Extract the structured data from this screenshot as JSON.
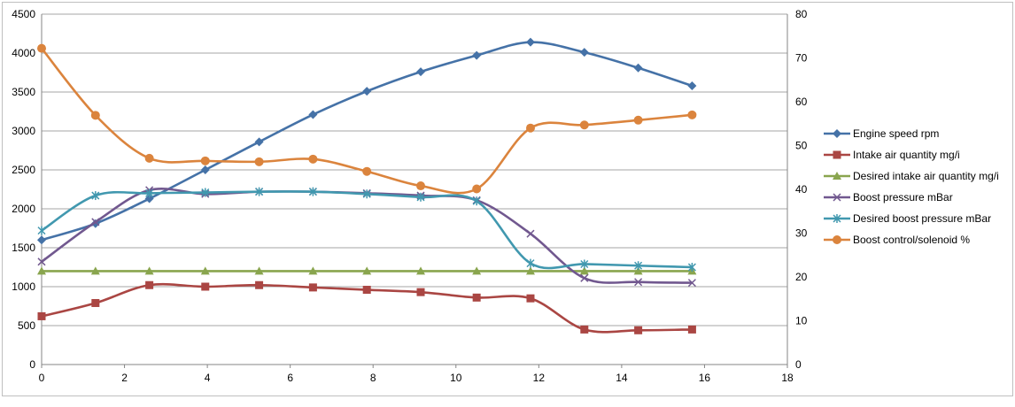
{
  "chart_data": {
    "type": "line",
    "smooth": true,
    "x_axis": {
      "min": 0,
      "max": 18,
      "step": 2,
      "ticks": [
        "0",
        "2",
        "4",
        "6",
        "8",
        "10",
        "12",
        "14",
        "16",
        "18"
      ]
    },
    "y_left": {
      "min": 0,
      "max": 4500,
      "step": 500,
      "ticks": [
        "0",
        "500",
        "1000",
        "1500",
        "2000",
        "2500",
        "3000",
        "3500",
        "4000",
        "4500"
      ]
    },
    "y_right": {
      "min": 0,
      "max": 80,
      "step": 10,
      "ticks": [
        "0",
        "10",
        "20",
        "30",
        "40",
        "50",
        "60",
        "70",
        "80"
      ]
    },
    "grid": "horizontal",
    "legend_position": "right",
    "series": [
      {
        "name": "Engine speed rpm",
        "axis": "left",
        "color": "#4572a7",
        "marker": "diamond",
        "x": [
          0,
          1.3,
          2.6,
          3.95,
          5.25,
          6.55,
          7.85,
          9.15,
          10.5,
          11.8,
          13.1,
          14.4,
          15.7
        ],
        "y": [
          1600,
          1810,
          2130,
          2500,
          2860,
          3210,
          3510,
          3760,
          3970,
          4140,
          4010,
          3810,
          3580
        ]
      },
      {
        "name": "Intake air quantity mg/i",
        "axis": "left",
        "color": "#aa4643",
        "marker": "square",
        "x": [
          0,
          1.3,
          2.6,
          3.95,
          5.25,
          6.55,
          7.85,
          9.15,
          10.5,
          11.8,
          13.1,
          14.4,
          15.7
        ],
        "y": [
          620,
          790,
          1020,
          1000,
          1020,
          990,
          960,
          930,
          860,
          850,
          450,
          440,
          450
        ]
      },
      {
        "name": "Desired intake air quantity mg/i",
        "axis": "left",
        "color": "#89a54e",
        "marker": "triangle",
        "x": [
          0,
          1.3,
          2.6,
          3.95,
          5.25,
          6.55,
          7.85,
          9.15,
          10.5,
          11.8,
          13.1,
          14.4,
          15.7
        ],
        "y": [
          1200,
          1200,
          1200,
          1200,
          1200,
          1200,
          1200,
          1200,
          1200,
          1200,
          1200,
          1200,
          1200
        ]
      },
      {
        "name": "Boost pressure mBar",
        "axis": "left",
        "color": "#71588f",
        "marker": "x",
        "x": [
          0,
          1.3,
          2.6,
          3.95,
          5.25,
          6.55,
          7.85,
          9.15,
          10.5,
          11.8,
          13.1,
          14.4,
          15.7
        ],
        "y": [
          1320,
          1830,
          2240,
          2190,
          2220,
          2220,
          2200,
          2170,
          2110,
          1680,
          1110,
          1060,
          1050
        ]
      },
      {
        "name": "Desired boost pressure mBar",
        "axis": "left",
        "color": "#4198af",
        "marker": "star",
        "x": [
          0,
          1.3,
          2.6,
          3.95,
          5.25,
          6.55,
          7.85,
          9.15,
          10.5,
          11.8,
          13.1,
          14.4,
          15.7
        ],
        "y": [
          1720,
          2170,
          2200,
          2210,
          2220,
          2220,
          2190,
          2150,
          2100,
          1300,
          1290,
          1270,
          1250
        ]
      },
      {
        "name": "Boost control/solenoid %",
        "axis": "right",
        "color": "#db843d",
        "marker": "circle",
        "x": [
          0,
          1.3,
          2.6,
          3.95,
          5.25,
          6.55,
          7.85,
          9.15,
          10.5,
          11.8,
          13.1,
          14.4,
          15.7
        ],
        "y": [
          72.2,
          56.9,
          47.1,
          46.5,
          46.3,
          46.9,
          44.1,
          40.8,
          40.1,
          54.0,
          54.7,
          55.8,
          57.0
        ]
      }
    ]
  }
}
